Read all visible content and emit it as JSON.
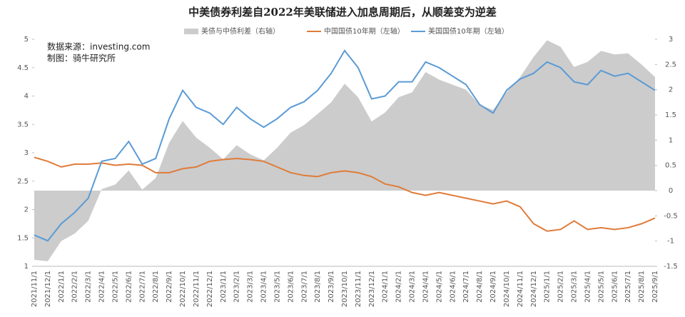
{
  "chart_data": {
    "type": "line",
    "title": "中美债券利差自2022年美联储进入加息周期后，从顺差变为逆差",
    "annotations": [
      "数据来源：investing.com",
      "制图：骑牛研究所"
    ],
    "categories": [
      "2021/11/1",
      "2021/12/1",
      "2022/1/1",
      "2022/2/1",
      "2022/3/1",
      "2022/4/1",
      "2022/5/1",
      "2022/6/1",
      "2022/7/1",
      "2022/8/1",
      "2022/9/1",
      "2022/10/1",
      "2022/11/1",
      "2022/12/1",
      "2023/1/1",
      "2023/2/1",
      "2023/3/1",
      "2023/4/1",
      "2023/5/1",
      "2023/6/1",
      "2023/7/1",
      "2023/8/1",
      "2023/9/1",
      "2023/10/1",
      "2023/11/1",
      "2023/12/1",
      "2024/1/1",
      "2024/2/1",
      "2024/3/1",
      "2024/4/1",
      "2024/5/1",
      "2024/6/1",
      "2024/7/1",
      "2024/8/1",
      "2024/9/1",
      "2024/10/1",
      "2024/11/1",
      "2024/12/1",
      "2025/1/1",
      "2025/2/1",
      "2025/3/1",
      "2025/4/1",
      "2025/5/1",
      "2025/6/1",
      "2025/7/1",
      "2025/8/1",
      "2025/9/1"
    ],
    "series": [
      {
        "name": "美债与中债利差（右轴）",
        "color": "#cccccc",
        "axis": "y2",
        "style": "area",
        "values": [
          -1.37,
          -1.4,
          -1.0,
          -0.85,
          -0.6,
          0.03,
          0.12,
          0.4,
          0.02,
          0.25,
          0.95,
          1.38,
          1.05,
          0.85,
          0.62,
          0.9,
          0.72,
          0.6,
          0.85,
          1.15,
          1.3,
          1.52,
          1.75,
          2.12,
          1.85,
          1.37,
          1.55,
          1.85,
          1.95,
          2.35,
          2.2,
          2.1,
          2.0,
          1.7,
          1.6,
          1.95,
          2.25,
          2.65,
          2.98,
          2.85,
          2.45,
          2.55,
          2.77,
          2.7,
          2.72,
          2.5,
          2.25
        ]
      },
      {
        "name": "中国国债10年期（左轴）",
        "color": "#e07b39",
        "style": "line",
        "values": [
          2.92,
          2.85,
          2.75,
          2.8,
          2.8,
          2.82,
          2.78,
          2.8,
          2.78,
          2.65,
          2.65,
          2.72,
          2.75,
          2.85,
          2.88,
          2.9,
          2.88,
          2.85,
          2.75,
          2.65,
          2.6,
          2.58,
          2.65,
          2.68,
          2.65,
          2.58,
          2.45,
          2.4,
          2.3,
          2.25,
          2.3,
          2.25,
          2.2,
          2.15,
          2.1,
          2.15,
          2.05,
          1.75,
          1.62,
          1.65,
          1.8,
          1.65,
          1.68,
          1.65,
          1.68,
          1.75,
          1.85
        ]
      },
      {
        "name": "美国国债10年期（左轴）",
        "color": "#5b9bd5",
        "style": "line",
        "values": [
          1.55,
          1.45,
          1.75,
          1.95,
          2.2,
          2.85,
          2.9,
          3.2,
          2.8,
          2.9,
          3.6,
          4.1,
          3.8,
          3.7,
          3.5,
          3.8,
          3.6,
          3.45,
          3.6,
          3.8,
          3.9,
          4.1,
          4.4,
          4.8,
          4.5,
          3.95,
          4.0,
          4.25,
          4.25,
          4.6,
          4.5,
          4.35,
          4.2,
          3.85,
          3.7,
          4.1,
          4.3,
          4.4,
          4.6,
          4.5,
          4.25,
          4.2,
          4.45,
          4.35,
          4.4,
          4.25,
          4.1
        ]
      }
    ],
    "ylim": [
      1,
      5
    ],
    "yticks": [
      1,
      1.5,
      2,
      2.5,
      3,
      3.5,
      4,
      4.5,
      5
    ],
    "y2lim": [
      -1.5,
      3
    ],
    "y2ticks": [
      -1.5,
      -1,
      -0.5,
      0,
      0.5,
      1,
      1.5,
      2,
      2.5,
      3
    ]
  }
}
